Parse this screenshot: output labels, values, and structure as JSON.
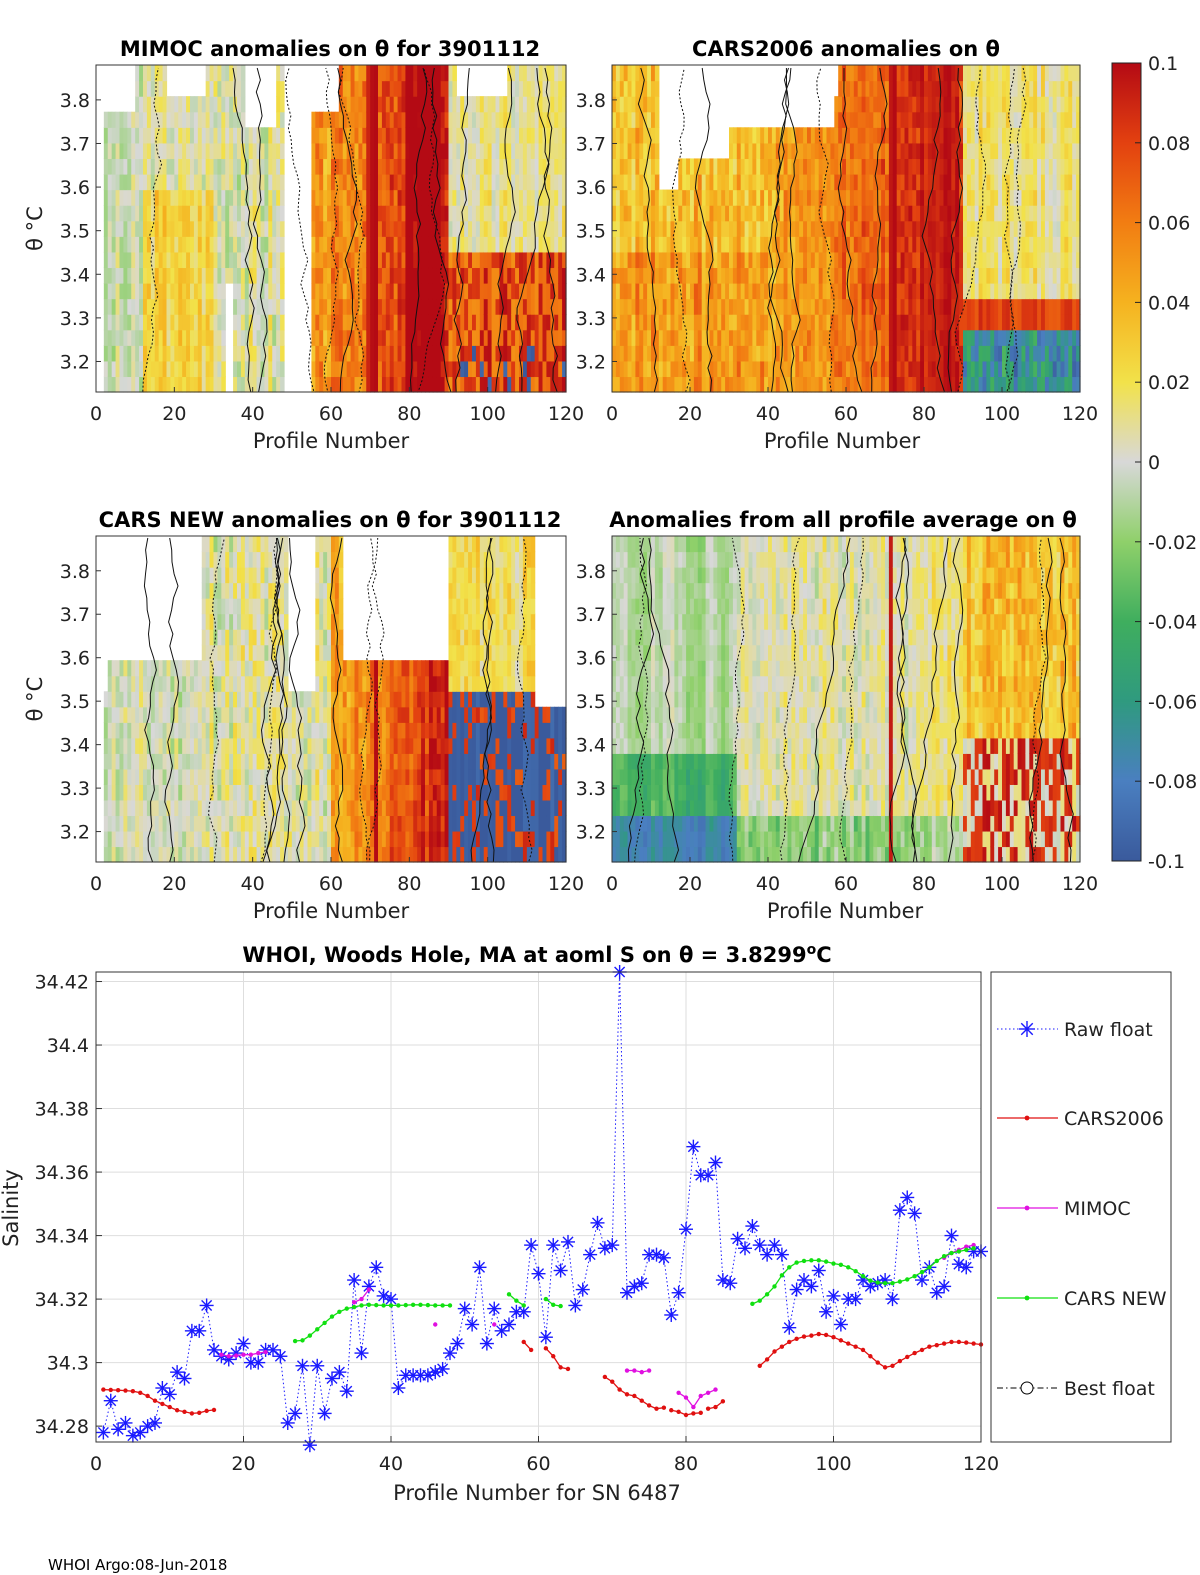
{
  "footer": "WHOI Argo:08-Jun-2018",
  "panels": [
    {
      "id": "mimoc",
      "title": "MIMOC anomalies on θ  for 3901112",
      "ylabel": "θ °C",
      "xlabel": "Profile Number",
      "seed": 3,
      "blanks": [
        [
          48,
          55,
          3.13,
          3.88
        ]
      ],
      "pattern": "mimoc"
    },
    {
      "id": "cars2006",
      "title": "CARS2006 anomalies on θ",
      "ylabel": "",
      "xlabel": "Profile Number",
      "seed": 7,
      "blanks": [],
      "pattern": "cars2006"
    },
    {
      "id": "carsnew",
      "title": "CARS NEW anomalies on θ for 3901112",
      "ylabel": "θ °C",
      "xlabel": "Profile Number",
      "seed": 11,
      "blanks": [],
      "pattern": "carsnew"
    },
    {
      "id": "allavg",
      "title": "Anomalies from all profile average on θ",
      "ylabel": "",
      "xlabel": "Profile Number",
      "seed": 19,
      "blanks": [],
      "pattern": "allavg"
    }
  ],
  "colorbar": {
    "ticks": [
      "0.1",
      "0.08",
      "0.06",
      "0.04",
      "0.02",
      "0",
      "-0.02",
      "-0.04",
      "-0.06",
      "-0.08",
      "-0.1"
    ],
    "min": -0.1,
    "max": 0.1,
    "colors": [
      "#3a5a9c",
      "#4a7fc0",
      "#2f9a7f",
      "#3fae5e",
      "#8fd06a",
      "#d8d8d8",
      "#f2e24a",
      "#f5b21f",
      "#f27d12",
      "#e34110",
      "#b40a14"
    ]
  },
  "heatmap_axes": {
    "xticks": [
      "0",
      "20",
      "40",
      "60",
      "80",
      "100",
      "120"
    ],
    "yticks": [
      "3.8",
      "3.7",
      "3.6",
      "3.5",
      "3.4",
      "3.3",
      "3.2"
    ],
    "xlim": [
      0,
      120
    ],
    "ylim": [
      3.13,
      3.88
    ]
  },
  "chart_data": {
    "type": "line",
    "title": "WHOI, Woods Hole, MA at aoml S on θ = 3.8299°C",
    "title_parts": {
      "pre": "WHOI, Woods Hole, MA at aoml S on θ = 3.8299",
      "o": "o",
      "post": "C"
    },
    "xlabel": "Profile Number for SN 6487",
    "ylabel": "Salinity",
    "xlim": [
      0,
      120
    ],
    "ylim": [
      34.275,
      34.423
    ],
    "xticks": [
      "0",
      "20",
      "40",
      "60",
      "80",
      "100",
      "120"
    ],
    "yticks": [
      "34.28",
      "34.3",
      "34.32",
      "34.34",
      "34.36",
      "34.38",
      "34.4",
      "34.42"
    ],
    "legend": [
      "Raw float",
      "CARS2006",
      "MIMOC",
      "CARS NEW",
      "Best float"
    ],
    "series": [
      {
        "name": "Raw float",
        "color": "#1a1aff",
        "style": "dotted-star",
        "x": [
          1,
          2,
          3,
          4,
          5,
          6,
          7,
          8,
          9,
          10,
          11,
          12,
          13,
          14,
          15,
          16,
          17,
          18,
          19,
          20,
          21,
          22,
          23,
          24,
          25,
          26,
          27,
          28,
          29,
          30,
          31,
          32,
          33,
          34,
          35,
          36,
          37,
          38,
          39,
          40,
          41,
          42,
          43,
          44,
          45,
          46,
          47,
          48,
          49,
          50,
          51,
          52,
          53,
          54,
          55,
          56,
          57,
          58,
          59,
          60,
          61,
          62,
          63,
          64,
          65,
          66,
          67,
          68,
          69,
          70,
          71,
          72,
          73,
          74,
          75,
          76,
          77,
          78,
          79,
          80,
          81,
          82,
          83,
          84,
          85,
          86,
          87,
          88,
          89,
          90,
          91,
          92,
          93,
          94,
          95,
          96,
          97,
          98,
          99,
          100,
          101,
          102,
          103,
          104,
          105,
          106,
          107,
          108,
          109,
          110,
          111,
          112,
          113,
          114,
          115,
          116,
          117,
          118,
          119,
          120
        ],
        "y": [
          34.278,
          34.288,
          34.279,
          34.281,
          34.277,
          34.278,
          34.28,
          34.281,
          34.292,
          34.29,
          34.297,
          34.295,
          34.31,
          34.31,
          34.318,
          34.304,
          34.302,
          34.301,
          34.303,
          34.306,
          34.3,
          34.3,
          34.304,
          34.304,
          34.302,
          34.281,
          34.284,
          34.299,
          34.274,
          34.299,
          34.284,
          34.295,
          34.297,
          34.291,
          34.326,
          34.303,
          34.324,
          34.33,
          34.321,
          34.32,
          34.292,
          34.296,
          34.296,
          34.296,
          34.296,
          34.297,
          34.298,
          34.303,
          34.306,
          34.317,
          34.312,
          34.33,
          34.306,
          34.317,
          34.31,
          34.312,
          34.316,
          34.316,
          34.337,
          34.328,
          34.308,
          34.337,
          34.329,
          34.338,
          34.318,
          34.323,
          34.334,
          34.344,
          34.336,
          34.337,
          34.423,
          34.322,
          34.324,
          34.325,
          34.334,
          34.334,
          34.333,
          34.315,
          34.322,
          34.342,
          34.368,
          34.359,
          34.359,
          34.363,
          34.326,
          34.325,
          34.339,
          34.336,
          34.343,
          34.337,
          34.334,
          34.337,
          34.334,
          34.311,
          34.323,
          34.326,
          34.324,
          34.329,
          34.316,
          34.321,
          34.312,
          34.32,
          34.32,
          34.326,
          34.324,
          34.325,
          34.326,
          34.32,
          34.348,
          34.352,
          34.347,
          34.326,
          34.33,
          34.322,
          34.324,
          34.34,
          34.331,
          34.33,
          34.335,
          34.335
        ]
      },
      {
        "name": "CARS2006",
        "color": "#e01010",
        "style": "line-dot",
        "segments": [
          {
            "x": [
              1,
              2,
              3,
              4,
              5,
              6,
              7,
              8,
              9,
              10,
              11,
              12,
              13,
              14,
              15,
              16
            ],
            "y": [
              34.2915,
              34.2914,
              34.2913,
              34.2912,
              34.291,
              34.2905,
              34.2895,
              34.288,
              34.287,
              34.286,
              34.285,
              34.2845,
              34.284,
              34.2842,
              34.2848,
              34.2851
            ]
          },
          {
            "x": [
              58,
              59
            ],
            "y": [
              34.3065,
              34.304
            ]
          },
          {
            "x": [
              61,
              62,
              63,
              64
            ],
            "y": [
              34.3045,
              34.302,
              34.2985,
              34.298
            ]
          },
          {
            "x": [
              69,
              70,
              71,
              72,
              73,
              74,
              75,
              76,
              77
            ],
            "y": [
              34.2955,
              34.294,
              34.2915,
              34.29,
              34.2895,
              34.288,
              34.2865,
              34.2855,
              34.2858
            ]
          },
          {
            "x": [
              78,
              79,
              80,
              81,
              82
            ],
            "y": [
              34.285,
              34.2845,
              34.2835,
              34.284,
              34.2842
            ]
          },
          {
            "x": [
              83,
              84,
              85
            ],
            "y": [
              34.2855,
              34.286,
              34.2878
            ]
          },
          {
            "x": [
              90,
              91,
              92,
              93,
              94,
              95,
              96,
              97,
              98,
              99,
              100,
              101,
              102,
              103,
              104,
              105,
              106,
              107,
              108,
              109,
              110,
              111,
              112,
              113,
              114,
              115,
              116,
              117,
              118,
              119,
              120
            ],
            "y": [
              34.299,
              34.301,
              34.3035,
              34.305,
              34.3065,
              34.3075,
              34.3082,
              34.3085,
              34.309,
              34.3087,
              34.308,
              34.307,
              34.306,
              34.305,
              34.304,
              34.302,
              34.3,
              34.2985,
              34.299,
              34.3005,
              34.3018,
              34.303,
              34.304,
              34.305,
              34.3055,
              34.306,
              34.3065,
              34.3065,
              34.3063,
              34.306,
              34.3057
            ]
          }
        ]
      },
      {
        "name": "MIMOC",
        "color": "#e010e0",
        "style": "line-dot",
        "segments": [
          {
            "x": [
              17,
              18,
              19,
              20,
              21,
              22,
              23
            ],
            "y": [
              34.3025,
              34.302,
              34.3022,
              34.3025,
              34.3025,
              34.303,
              34.3033
            ]
          },
          {
            "x": [
              35,
              36,
              37
            ],
            "y": [
              34.319,
              34.32,
              34.323
            ]
          },
          {
            "x": [
              46
            ],
            "y": [
              34.312
            ]
          },
          {
            "x": [
              54
            ],
            "y": [
              34.312
            ]
          },
          {
            "x": [
              72,
              73,
              74,
              75
            ],
            "y": [
              34.2975,
              34.2975,
              34.297,
              34.2975
            ]
          },
          {
            "x": [
              79,
              80,
              81,
              82,
              83,
              84
            ],
            "y": [
              34.2905,
              34.289,
              34.286,
              34.2895,
              34.2905,
              34.2915
            ]
          },
          {
            "x": [
              115,
              116,
              117,
              118,
              119
            ],
            "y": [
              34.333,
              34.3345,
              34.3355,
              34.3365,
              34.337
            ]
          }
        ]
      },
      {
        "name": "CARS NEW",
        "color": "#10e010",
        "style": "line-dot",
        "segments": [
          {
            "x": [
              27,
              28,
              29,
              30,
              31,
              32,
              33,
              34,
              35,
              36,
              37,
              38,
              39,
              40,
              41,
              42,
              43,
              44,
              45,
              46,
              47,
              48
            ],
            "y": [
              34.3068,
              34.307,
              34.3085,
              34.3105,
              34.3125,
              34.3145,
              34.316,
              34.317,
              34.3175,
              34.318,
              34.3182,
              34.3181,
              34.318,
              34.318,
              34.318,
              34.3181,
              34.3182,
              34.3182,
              34.3181,
              34.318,
              34.318,
              34.318
            ]
          },
          {
            "x": [
              56,
              57,
              58
            ],
            "y": [
              34.3215,
              34.3195,
              34.318
            ]
          },
          {
            "x": [
              61,
              62,
              63
            ],
            "y": [
              34.32,
              34.3182,
              34.3178
            ]
          },
          {
            "x": [
              89,
              90,
              91,
              92,
              93,
              94,
              95,
              96,
              97,
              98,
              99,
              100,
              101,
              102,
              103,
              104,
              105,
              106,
              107,
              108,
              109,
              110,
              111,
              112,
              113,
              114,
              115,
              116,
              117,
              118,
              119
            ],
            "y": [
              34.3185,
              34.3195,
              34.3215,
              34.324,
              34.3275,
              34.33,
              34.3315,
              34.332,
              34.3322,
              34.3322,
              34.3318,
              34.3312,
              34.3308,
              34.33,
              34.3288,
              34.3272,
              34.3258,
              34.3252,
              34.325,
              34.325,
              34.3255,
              34.3262,
              34.3272,
              34.3285,
              34.33,
              34.332,
              34.3335,
              34.3345,
              34.335,
              34.3355,
              34.336
            ]
          }
        ]
      },
      {
        "name": "Best float",
        "color": "#000000",
        "style": "dashdot-circle",
        "segments": []
      }
    ]
  }
}
